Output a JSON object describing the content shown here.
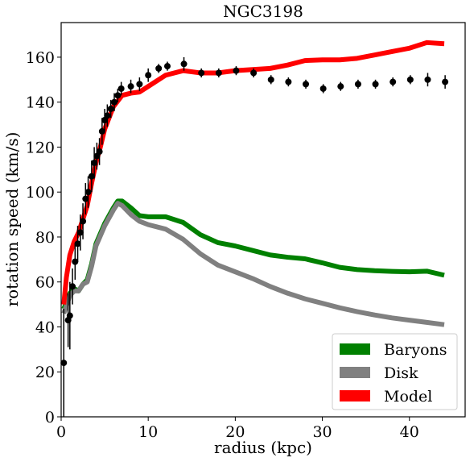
{
  "chart_data": {
    "type": "line",
    "title": "NGC3198",
    "x_label": "radius (kpc)",
    "y_label": "rotation speed (km/s)",
    "xlim": [
      0,
      46.4
    ],
    "ylim": [
      0,
      175.4
    ],
    "xticks": [
      0,
      10,
      20,
      30,
      40
    ],
    "yticks": [
      0,
      20,
      40,
      60,
      80,
      100,
      120,
      140,
      160
    ],
    "legend": "lower right",
    "series": [
      {
        "name": "Baryons",
        "color": "#008000",
        "x": [
          0.3,
          1,
          1.5,
          2,
          2.5,
          3,
          3.5,
          4,
          5,
          6,
          6.5,
          7,
          8,
          9,
          10,
          12,
          14,
          16,
          18,
          20,
          22,
          24,
          26,
          28,
          30,
          32,
          34,
          36,
          38,
          40,
          42,
          44
        ],
        "values": [
          48,
          55,
          57,
          56,
          59,
          61,
          68,
          77,
          86,
          93,
          96,
          96,
          93,
          89.5,
          89,
          89,
          86.5,
          81,
          77.5,
          76,
          74,
          72,
          71,
          70.3,
          68.5,
          66.5,
          65.5,
          65,
          64.7,
          64.5,
          64.8,
          63
        ]
      },
      {
        "name": "Disk",
        "color": "#808080",
        "x": [
          0.3,
          1,
          1.5,
          2,
          2.5,
          3,
          3.5,
          4,
          5,
          6,
          6.5,
          7,
          8,
          9,
          10,
          12,
          14,
          16,
          18,
          20,
          22,
          24,
          26,
          28,
          30,
          32,
          34,
          36,
          38,
          40,
          42,
          44
        ],
        "values": [
          46,
          54,
          56,
          56,
          59,
          60,
          67,
          76,
          85,
          92,
          95,
          94,
          90,
          87,
          85.5,
          83.5,
          79,
          72.5,
          67.5,
          64.5,
          61.5,
          58,
          55,
          52.5,
          50.5,
          48.5,
          46.8,
          45.3,
          44,
          43,
          42,
          41
        ]
      },
      {
        "name": "Model",
        "color": "#ff0000",
        "x": [
          0.3,
          0.6,
          1,
          1.5,
          2,
          2.5,
          3,
          3.5,
          4,
          4.5,
          5,
          6,
          7,
          8,
          9,
          10,
          12,
          14,
          16,
          18,
          20,
          22,
          24,
          26,
          28,
          30,
          32,
          34,
          36,
          38,
          40,
          42,
          44
        ],
        "values": [
          50,
          62,
          72,
          78,
          82,
          88,
          94,
          104,
          113,
          120,
          128,
          138,
          143,
          144,
          144.5,
          147,
          152,
          154,
          153,
          153,
          154,
          154.5,
          155,
          156.5,
          158.5,
          158.8,
          158.8,
          159.5,
          161,
          162.5,
          164,
          166.5,
          166
        ]
      }
    ],
    "points": {
      "color": "#000000",
      "x": [
        0.3,
        0.8,
        1.0,
        1.3,
        1.6,
        1.9,
        2.2,
        2.5,
        2.8,
        3.1,
        3.5,
        3.8,
        4.1,
        4.4,
        4.7,
        5.0,
        5.3,
        5.7,
        6.1,
        6.5,
        6.9,
        8.0,
        9.0,
        10.0,
        11.2,
        12.2,
        14.1,
        16.1,
        18.1,
        20.1,
        22.1,
        24.1,
        26.1,
        28.1,
        30.1,
        32.1,
        34.1,
        36.1,
        38.1,
        40.1,
        42.1,
        44.1
      ],
      "values": [
        24,
        43,
        45,
        58,
        69,
        77,
        82,
        87,
        97,
        100,
        107,
        113,
        116,
        118,
        127,
        132,
        134,
        137,
        140,
        143,
        146,
        147,
        148,
        152,
        155,
        156,
        157,
        153,
        153,
        154,
        153,
        150,
        149,
        148,
        146,
        147,
        148,
        148,
        149,
        150,
        150,
        149
      ],
      "errors": [
        24,
        12,
        15,
        8,
        8,
        8,
        8,
        8,
        7,
        7,
        7,
        7,
        6,
        6,
        6,
        5,
        5,
        4,
        4,
        3,
        3,
        3,
        3,
        3,
        2,
        2,
        3,
        2,
        2,
        2,
        2,
        2,
        2,
        2,
        2,
        2,
        2,
        2,
        2,
        2,
        3,
        3
      ]
    }
  }
}
